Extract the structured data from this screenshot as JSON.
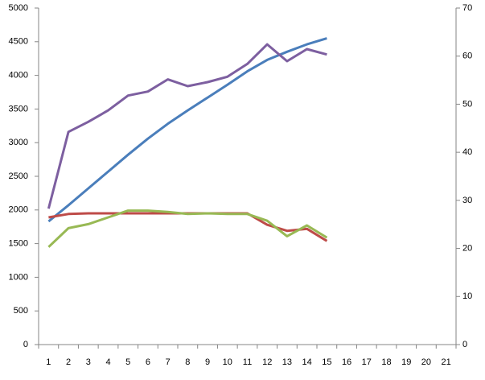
{
  "chart_data": {
    "type": "line",
    "categories": [
      "1",
      "2",
      "3",
      "4",
      "5",
      "6",
      "7",
      "8",
      "9",
      "10",
      "11",
      "12",
      "13",
      "14",
      "15",
      "16",
      "17",
      "18",
      "19",
      "20",
      "21"
    ],
    "series": [
      {
        "color": "#4a7ebb",
        "values": [
          1830,
          2070,
          2320,
          2570,
          2820,
          3060,
          3280,
          3480,
          3670,
          3860,
          4060,
          4230,
          4350,
          4460,
          4550,
          null,
          null,
          null,
          null,
          null,
          null
        ]
      },
      {
        "color": "#7d5fa0",
        "values": [
          2020,
          3160,
          3310,
          3480,
          3700,
          3760,
          3940,
          3840,
          3900,
          3980,
          4170,
          4460,
          4210,
          4390,
          4310,
          null,
          null,
          null,
          null,
          null,
          null
        ]
      },
      {
        "color": "#be4b48",
        "values": [
          1890,
          1940,
          1950,
          1950,
          1950,
          1950,
          1950,
          1950,
          1950,
          1950,
          1950,
          1780,
          1690,
          1720,
          1540,
          null,
          null,
          null,
          null,
          null,
          null
        ]
      },
      {
        "color": "#98b954",
        "values": [
          1450,
          1730,
          1790,
          1890,
          1990,
          1990,
          1970,
          1940,
          1950,
          1940,
          1940,
          1840,
          1610,
          1770,
          1590,
          null,
          null,
          null,
          null,
          null,
          null
        ]
      }
    ],
    "ylim": [
      0,
      5000
    ],
    "yticks": [
      0,
      500,
      1000,
      1500,
      2000,
      2500,
      3000,
      3500,
      4000,
      4500,
      5000
    ],
    "y2lim": [
      0,
      70
    ],
    "y2ticks": [
      0,
      10,
      20,
      30,
      40,
      50,
      60,
      70
    ],
    "grid": false
  }
}
